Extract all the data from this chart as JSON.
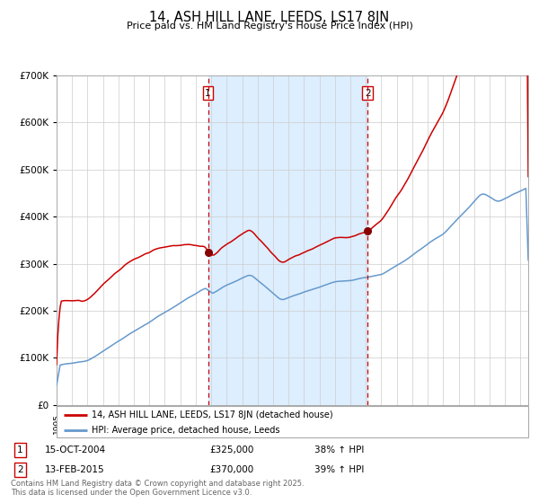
{
  "title": "14, ASH HILL LANE, LEEDS, LS17 8JN",
  "subtitle": "Price paid vs. HM Land Registry's House Price Index (HPI)",
  "legend_line1": "14, ASH HILL LANE, LEEDS, LS17 8JN (detached house)",
  "legend_line2": "HPI: Average price, detached house, Leeds",
  "annotation1_date": "15-OCT-2004",
  "annotation1_price": "£325,000",
  "annotation1_hpi": "38% ↑ HPI",
  "annotation2_date": "13-FEB-2015",
  "annotation2_price": "£370,000",
  "annotation2_hpi": "39% ↑ HPI",
  "footer": "Contains HM Land Registry data © Crown copyright and database right 2025.\nThis data is licensed under the Open Government Licence v3.0.",
  "red_color": "#cc0000",
  "blue_color": "#6699cc",
  "bg_color": "#ddeeff",
  "grid_color": "#cccccc",
  "purchase1_year": 2004.79,
  "purchase2_year": 2015.12,
  "purchase1_price": 325000,
  "purchase2_price": 370000,
  "ylim_max": 700000,
  "start_year": 1995,
  "end_year": 2025
}
